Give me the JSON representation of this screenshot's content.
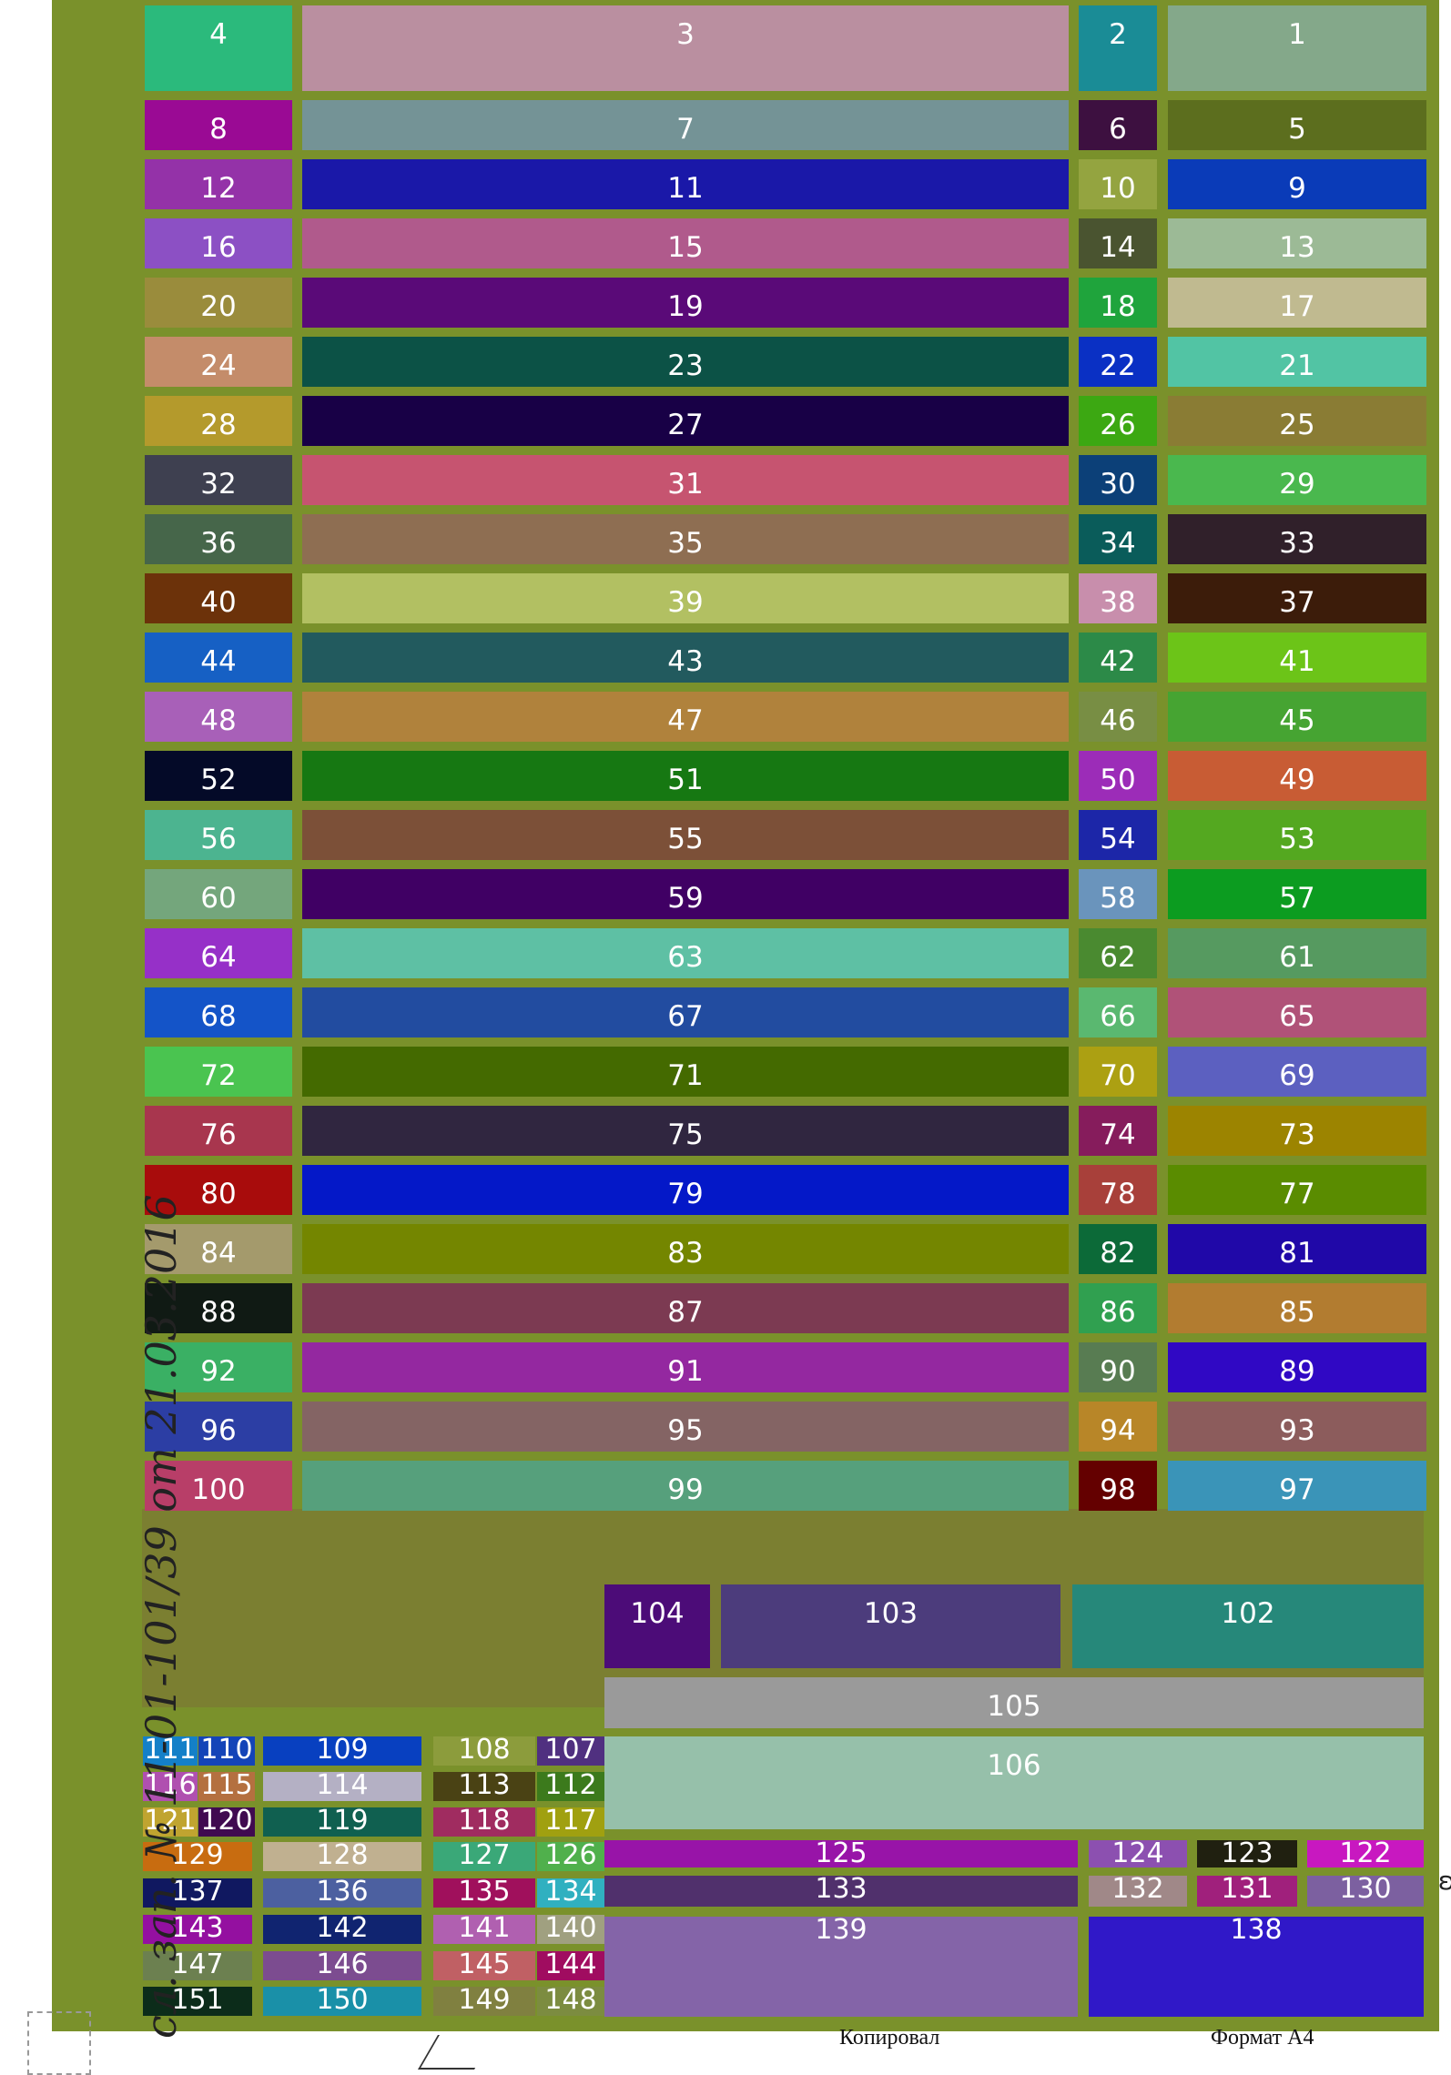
{
  "sheet": {
    "background": "#7a912b"
  },
  "handwritten_note": "сл. зап. № 11-01-101/39 от 21.03.2016",
  "footer": {
    "copied_label": "Копировал",
    "format_label": "Формат А4"
  },
  "cells": [
    {
      "n": "1",
      "c": "#84a88a"
    },
    {
      "n": "2",
      "c": "#1a8c96"
    },
    {
      "n": "3",
      "c": "#ba8fa0"
    },
    {
      "n": "4",
      "c": "#2bba7c"
    },
    {
      "n": "5",
      "c": "#5c6e1e"
    },
    {
      "n": "6",
      "c": "#3d1040"
    },
    {
      "n": "7",
      "c": "#749396"
    },
    {
      "n": "8",
      "c": "#9a0a94"
    },
    {
      "n": "9",
      "c": "#0a3bb8"
    },
    {
      "n": "10",
      "c": "#94a440"
    },
    {
      "n": "11",
      "c": "#1a18a8"
    },
    {
      "n": "12",
      "c": "#9432a8"
    },
    {
      "n": "13",
      "c": "#9cba96"
    },
    {
      "n": "14",
      "c": "#4a5430"
    },
    {
      "n": "15",
      "c": "#b05a8c"
    },
    {
      "n": "16",
      "c": "#8c50c4"
    },
    {
      "n": "17",
      "c": "#c0ba90"
    },
    {
      "n": "18",
      "c": "#1fa43c"
    },
    {
      "n": "19",
      "c": "#5a0a78"
    },
    {
      "n": "20",
      "c": "#9a8c3c"
    },
    {
      "n": "21",
      "c": "#52c4a4"
    },
    {
      "n": "22",
      "c": "#0a30c4"
    },
    {
      "n": "23",
      "c": "#0c5246"
    },
    {
      "n": "24",
      "c": "#c48c6a"
    },
    {
      "n": "25",
      "c": "#8a7c34"
    },
    {
      "n": "26",
      "c": "#3ca812"
    },
    {
      "n": "27",
      "c": "#180046"
    },
    {
      "n": "28",
      "c": "#b49a2c"
    },
    {
      "n": "29",
      "c": "#4ab84e"
    },
    {
      "n": "30",
      "c": "#0c4078"
    },
    {
      "n": "31",
      "c": "#c65470"
    },
    {
      "n": "32",
      "c": "#3e4050"
    },
    {
      "n": "33",
      "c": "#30202a"
    },
    {
      "n": "34",
      "c": "#0a5c5a"
    },
    {
      "n": "35",
      "c": "#8e6e52"
    },
    {
      "n": "36",
      "c": "#46664a"
    },
    {
      "n": "37",
      "c": "#3c1c0a"
    },
    {
      "n": "38",
      "c": "#c88eac"
    },
    {
      "n": "39",
      "c": "#b2c062"
    },
    {
      "n": "40",
      "c": "#6c320a"
    },
    {
      "n": "41",
      "c": "#6cc418"
    },
    {
      "n": "42",
      "c": "#2c8a48"
    },
    {
      "n": "43",
      "c": "#225a5e"
    },
    {
      "n": "44",
      "c": "#1660c4"
    },
    {
      "n": "45",
      "c": "#46a432"
    },
    {
      "n": "46",
      "c": "#788e44"
    },
    {
      "n": "47",
      "c": "#b0823c"
    },
    {
      "n": "48",
      "c": "#a860b8"
    },
    {
      "n": "49",
      "c": "#c85c34"
    },
    {
      "n": "50",
      "c": "#9c2cb8"
    },
    {
      "n": "51",
      "c": "#167812"
    },
    {
      "n": "52",
      "c": "#040a28"
    },
    {
      "n": "53",
      "c": "#54a820"
    },
    {
      "n": "54",
      "c": "#1c26a8"
    },
    {
      "n": "55",
      "c": "#7c5038"
    },
    {
      "n": "56",
      "c": "#4cb490"
    },
    {
      "n": "57",
      "c": "#0c9c20"
    },
    {
      "n": "58",
      "c": "#6a94bc"
    },
    {
      "n": "59",
      "c": "#400064"
    },
    {
      "n": "60",
      "c": "#74a67c"
    },
    {
      "n": "61",
      "c": "#569a60"
    },
    {
      "n": "62",
      "c": "#4a8a30"
    },
    {
      "n": "63",
      "c": "#5ec0a4"
    },
    {
      "n": "64",
      "c": "#9630c8"
    },
    {
      "n": "65",
      "c": "#b05278"
    },
    {
      "n": "66",
      "c": "#5ab870"
    },
    {
      "n": "67",
      "c": "#224ca0"
    },
    {
      "n": "68",
      "c": "#1454c8"
    },
    {
      "n": "69",
      "c": "#5c60c0"
    },
    {
      "n": "70",
      "c": "#aca012"
    },
    {
      "n": "71",
      "c": "#446a00"
    },
    {
      "n": "72",
      "c": "#4ac450"
    },
    {
      "n": "73",
      "c": "#9c8400"
    },
    {
      "n": "74",
      "c": "#861c5c"
    },
    {
      "n": "75",
      "c": "#302640"
    },
    {
      "n": "76",
      "c": "#a8364e"
    },
    {
      "n": "77",
      "c": "#5a8c00"
    },
    {
      "n": "78",
      "c": "#a8403a"
    },
    {
      "n": "79",
      "c": "#0418c8"
    },
    {
      "n": "80",
      "c": "#a80c0c"
    },
    {
      "n": "81",
      "c": "#2008a8"
    },
    {
      "n": "82",
      "c": "#0c6a38"
    },
    {
      "n": "83",
      "c": "#748600"
    },
    {
      "n": "84",
      "c": "#a49a6c"
    },
    {
      "n": "85",
      "c": "#b27c30"
    },
    {
      "n": "86",
      "c": "#30a050"
    },
    {
      "n": "87",
      "c": "#7c3a52"
    },
    {
      "n": "88",
      "c": "#101a14"
    },
    {
      "n": "89",
      "c": "#3008c4"
    },
    {
      "n": "90",
      "c": "#587c52"
    },
    {
      "n": "91",
      "c": "#9428a0"
    },
    {
      "n": "92",
      "c": "#3ab064"
    },
    {
      "n": "93",
      "c": "#8c5c5c"
    },
    {
      "n": "94",
      "c": "#b88628"
    },
    {
      "n": "95",
      "c": "#846464"
    },
    {
      "n": "96",
      "c": "#2c3ea4"
    },
    {
      "n": "97",
      "c": "#3a94b8"
    },
    {
      "n": "98",
      "c": "#640000"
    },
    {
      "n": "99",
      "c": "#56a07c"
    },
    {
      "n": "100",
      "c": "#b83e68"
    },
    {
      "n": "102",
      "c": "#26887a"
    },
    {
      "n": "103",
      "c": "#4c3c7c"
    },
    {
      "n": "104",
      "c": "#4c0c78"
    },
    {
      "n": "105",
      "c": "#9a9a9a"
    },
    {
      "n": "106",
      "c": "#96c0aa"
    },
    {
      "n": "107",
      "c": "#503080"
    },
    {
      "n": "108",
      "c": "#8c9c3c"
    },
    {
      "n": "109",
      "c": "#0840c0"
    },
    {
      "n": "110",
      "c": "#1444b8"
    },
    {
      "n": "111",
      "c": "#1480c8"
    },
    {
      "n": "112",
      "c": "#3c7a1c"
    },
    {
      "n": "113",
      "c": "#4a4214"
    },
    {
      "n": "114",
      "c": "#b4b0c4"
    },
    {
      "n": "115",
      "c": "#b47040"
    },
    {
      "n": "116",
      "c": "#b050b0"
    },
    {
      "n": "117",
      "c": "#a0a010"
    },
    {
      "n": "118",
      "c": "#a02c60"
    },
    {
      "n": "119",
      "c": "#106050"
    },
    {
      "n": "120",
      "c": "#400a50"
    },
    {
      "n": "121",
      "c": "#c0a430"
    },
    {
      "n": "122",
      "c": "#c818c0"
    },
    {
      "n": "123",
      "c": "#202010"
    },
    {
      "n": "124",
      "c": "#8c50b0"
    },
    {
      "n": "125",
      "c": "#9814a8"
    },
    {
      "n": "126",
      "c": "#50b04c"
    },
    {
      "n": "127",
      "c": "#3aa878"
    },
    {
      "n": "128",
      "c": "#c0b090"
    },
    {
      "n": "129",
      "c": "#c86c10"
    },
    {
      "n": "130",
      "c": "#7c60a0"
    },
    {
      "n": "131",
      "c": "#a0207c"
    },
    {
      "n": "132",
      "c": "#a08888"
    },
    {
      "n": "133",
      "c": "#50306c"
    },
    {
      "n": "134",
      "c": "#30b0c0"
    },
    {
      "n": "135",
      "c": "#a0105c"
    },
    {
      "n": "136",
      "c": "#4c60a0"
    },
    {
      "n": "137",
      "c": "#101860"
    },
    {
      "n": "138",
      "c": "#3018c8"
    },
    {
      "n": "139",
      "c": "#8464a8"
    },
    {
      "n": "140",
      "c": "#a0a080"
    },
    {
      "n": "141",
      "c": "#b060b0"
    },
    {
      "n": "142",
      "c": "#102470"
    },
    {
      "n": "143",
      "c": "#9410a0"
    },
    {
      "n": "144",
      "c": "#a00c60"
    },
    {
      "n": "145",
      "c": "#c06064"
    },
    {
      "n": "146",
      "c": "#7c4c90"
    },
    {
      "n": "147",
      "c": "#6c8050"
    },
    {
      "n": "148",
      "c": "#7c8c40"
    },
    {
      "n": "149",
      "c": "#808040"
    },
    {
      "n": "150",
      "c": "#1a90a8"
    },
    {
      "n": "151",
      "c": "#0c2c1a"
    }
  ]
}
